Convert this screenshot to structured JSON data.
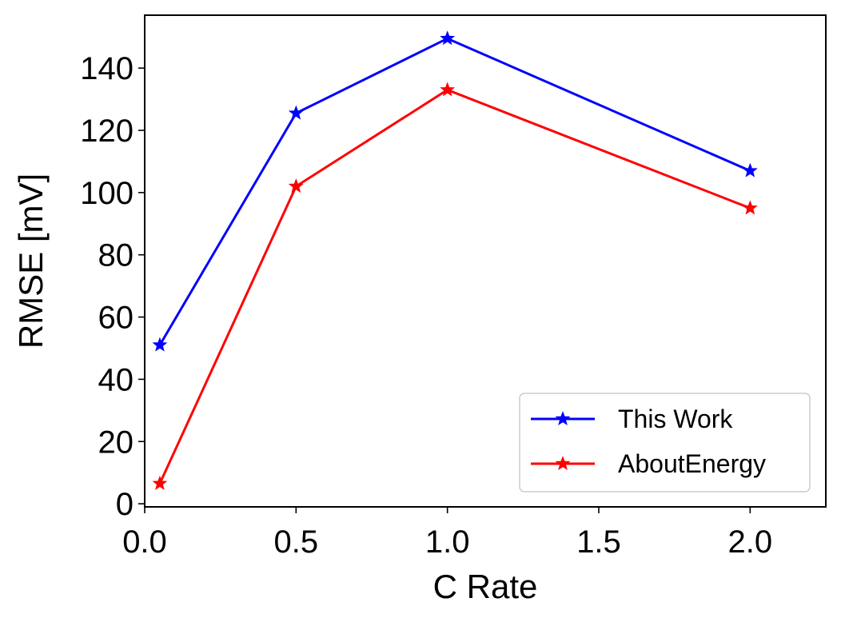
{
  "chart_data": {
    "type": "line",
    "xlabel": "C Rate",
    "ylabel": "RMSE [mV]",
    "xlim": [
      0,
      2.25
    ],
    "ylim": [
      -1,
      157
    ],
    "xticks": [
      0.0,
      0.5,
      1.0,
      1.5,
      2.0
    ],
    "xtick_labels": [
      "0.0",
      "0.5",
      "1.0",
      "1.5",
      "2.0"
    ],
    "yticks": [
      0,
      20,
      40,
      60,
      80,
      100,
      120,
      140
    ],
    "ytick_labels": [
      "0",
      "20",
      "40",
      "60",
      "80",
      "100",
      "120",
      "140"
    ],
    "grid": false,
    "legend_position": "bottom-right",
    "series": [
      {
        "name": "This Work",
        "color": "#0000ff",
        "marker": "star",
        "x": [
          0.05,
          0.5,
          1.0,
          2.0
        ],
        "y": [
          51,
          125.5,
          149.5,
          107
        ]
      },
      {
        "name": "AboutEnergy",
        "color": "#ff0000",
        "marker": "star",
        "x": [
          0.05,
          0.5,
          1.0,
          2.0
        ],
        "y": [
          6.5,
          102,
          133,
          95
        ]
      }
    ]
  }
}
